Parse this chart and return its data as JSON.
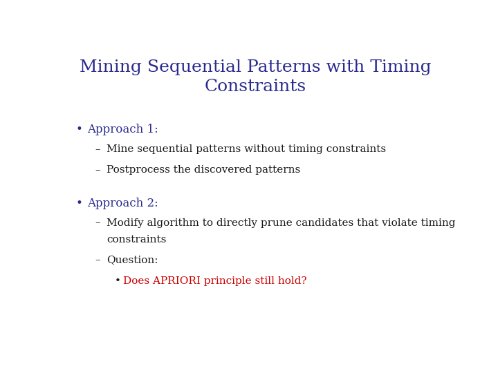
{
  "title_line1": "Mining Sequential Patterns with Timing",
  "title_line2": "Constraints",
  "title_color": "#2b2b8f",
  "background_color": "#ffffff",
  "bullet_color": "#2b2b8f",
  "text_color": "#1a1a1a",
  "red_color": "#cc0000",
  "title_fontsize": 18,
  "bullet1_label": "Approach 1:",
  "bullet1_sub": [
    "Mine sequential patterns without timing constraints",
    "Postprocess the discovered patterns"
  ],
  "bullet2_label": "Approach 2:",
  "bullet2_sub1_line1": "Modify algorithm to directly prune candidates that violate timing",
  "bullet2_sub1_line2": "constraints",
  "bullet2_sub2_label": "Question:",
  "bullet2_sub2_item": "Does APRIORI principle still hold?",
  "body_fontsize": 11,
  "bullet_fontsize": 12
}
